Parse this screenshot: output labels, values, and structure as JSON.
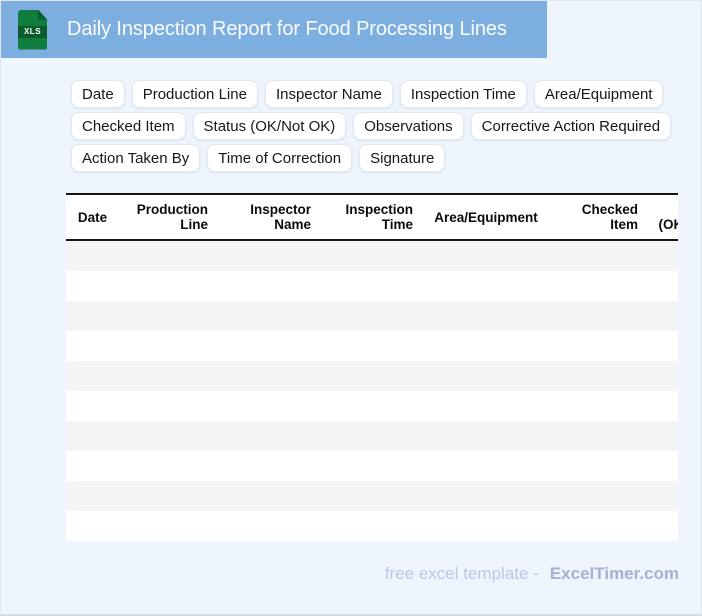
{
  "header": {
    "title": "Daily Inspection Report for Food Processing Lines",
    "file_icon_label": "XLS"
  },
  "chips": [
    "Date",
    "Production Line",
    "Inspector Name",
    "Inspection Time",
    "Area/Equipment",
    "Checked Item",
    "Status (OK/Not OK)",
    "Observations",
    "Corrective Action Required",
    "Action Taken By",
    "Time of Correction",
    "Signature"
  ],
  "table": {
    "columns": [
      "Date",
      "Production Line",
      "Inspector Name",
      "Inspection Time",
      "Area/Equipment",
      "Checked Item",
      "Status (OK/Not OK)"
    ],
    "empty_row_count": 10
  },
  "footer": {
    "tagline": "free excel template -",
    "brand": "ExcelTimer.com"
  },
  "colors": {
    "page_bg": "#EEF5FC",
    "header_bg": "#7CAEDF",
    "title_color": "#FBFCFE",
    "icon_green": "#107C3E",
    "icon_green_dark": "#0A5C2C",
    "chip_border": "#E2E8EF",
    "stripe": "#F5F5F5",
    "border_dark": "#151515",
    "footer_text": "#BAC6E8",
    "footer_brand": "#A6B0D2"
  }
}
